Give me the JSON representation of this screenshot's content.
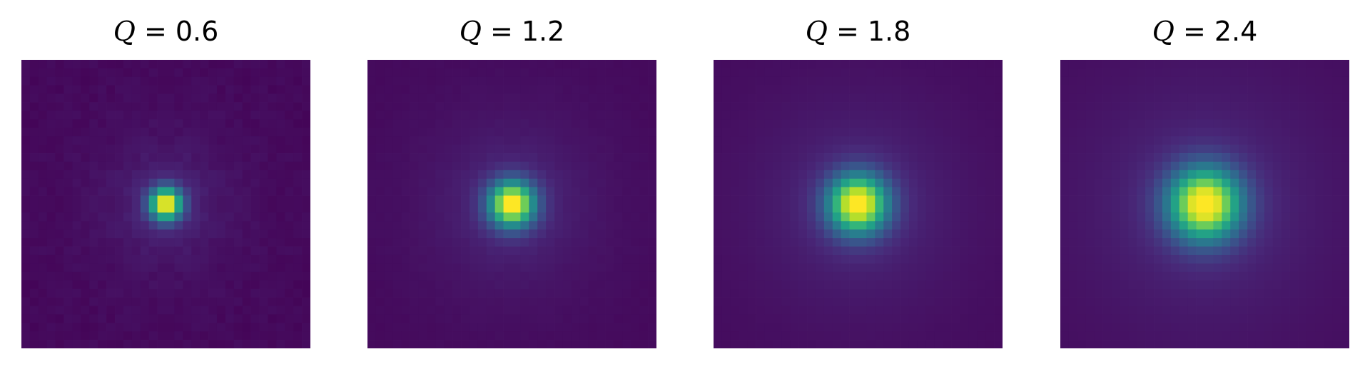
{
  "chart_data": [
    {
      "type": "heatmap",
      "title_var": "Q",
      "title_eq": " = ",
      "title_value": "0.6",
      "Q": 0.6,
      "grid": false,
      "colormap": "viridis"
    },
    {
      "type": "heatmap",
      "title_var": "Q",
      "title_eq": " = ",
      "title_value": "1.2",
      "Q": 1.2,
      "grid": false,
      "colormap": "viridis"
    },
    {
      "type": "heatmap",
      "title_var": "Q",
      "title_eq": " = ",
      "title_value": "1.8",
      "Q": 1.8,
      "grid": false,
      "colormap": "viridis"
    },
    {
      "type": "heatmap",
      "title_var": "Q",
      "title_eq": " = ",
      "title_value": "2.4",
      "Q": 2.4,
      "grid": false,
      "colormap": "viridis"
    }
  ]
}
